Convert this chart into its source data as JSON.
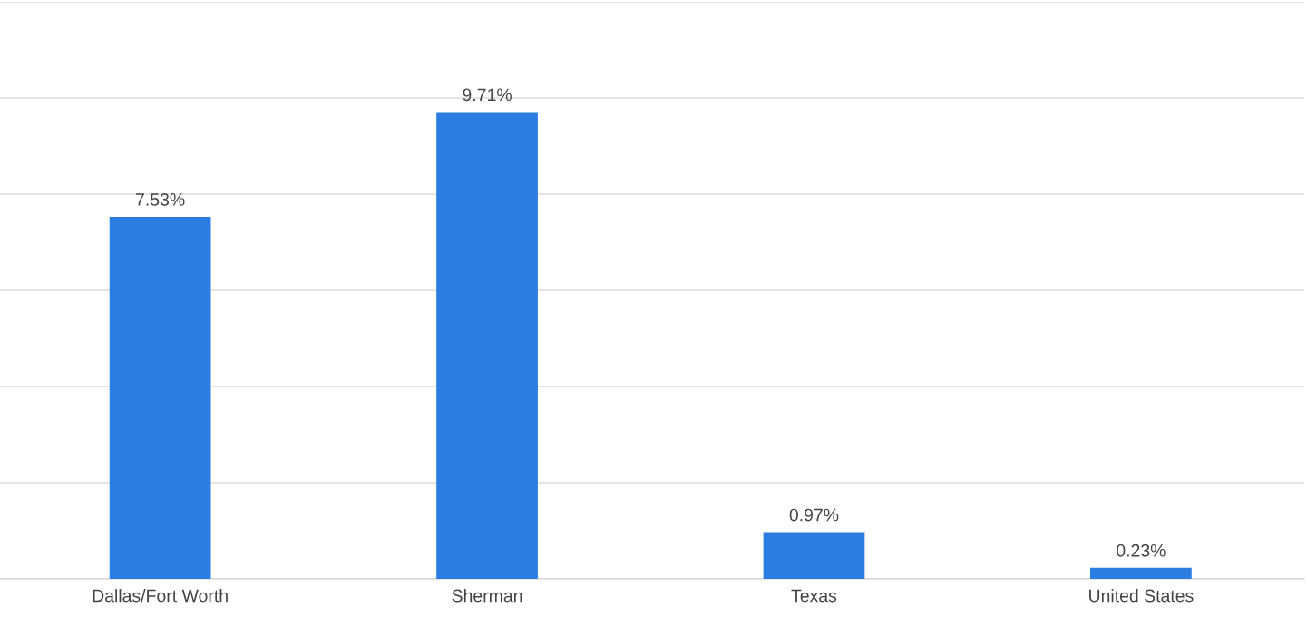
{
  "chart_data": {
    "type": "bar",
    "categories": [
      "Dallas/Fort Worth",
      "Sherman",
      "Texas",
      "United States"
    ],
    "values": [
      7.53,
      9.71,
      0.97,
      0.23
    ],
    "value_labels": [
      "7.53%",
      "9.71%",
      "0.97%",
      "0.23%"
    ],
    "color": "#2b7de1",
    "ylim": [
      0,
      12
    ],
    "yticks": [
      {
        "value": 0,
        "label": null
      },
      {
        "value": 2,
        "label": null
      },
      {
        "value": 4,
        "label": null
      },
      {
        "value": 6,
        "label": null
      },
      {
        "value": 8,
        "label": null
      },
      {
        "value": 10,
        "label": null
      },
      {
        "value": 12,
        "label": null
      }
    ],
    "tick_labels": "x",
    "grid": "y",
    "legend": false
  }
}
